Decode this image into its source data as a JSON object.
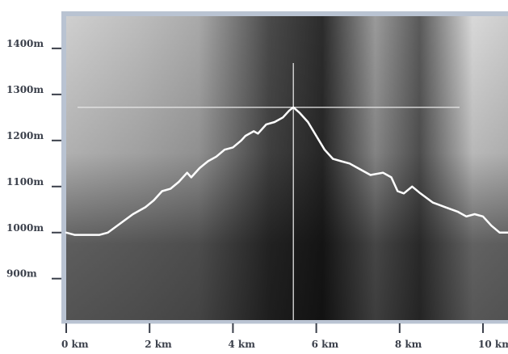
{
  "chart_data": {
    "type": "line",
    "title": "",
    "xlabel": "",
    "ylabel": "",
    "x_unit": "km",
    "y_unit": "m",
    "xlim": [
      0,
      10.6
    ],
    "ylim": [
      810,
      1470
    ],
    "x_ticks": [
      {
        "value": 0,
        "label": "0 km"
      },
      {
        "value": 2,
        "label": "2 km"
      },
      {
        "value": 4,
        "label": "4 km"
      },
      {
        "value": 6,
        "label": "6 km"
      },
      {
        "value": 8,
        "label": "8 km"
      },
      {
        "value": 10,
        "label": "10 km"
      }
    ],
    "y_ticks": [
      {
        "value": 1400,
        "label": "1400m"
      },
      {
        "value": 1300,
        "label": "1300m"
      },
      {
        "value": 1200,
        "label": "1200m"
      },
      {
        "value": 1100,
        "label": "1100m"
      },
      {
        "value": 1000,
        "label": "1000m"
      },
      {
        "value": 900,
        "label": "900m"
      }
    ],
    "series": [
      {
        "color": "#ffffff",
        "points": [
          [
            0.0,
            1000
          ],
          [
            0.2,
            995
          ],
          [
            0.5,
            995
          ],
          [
            0.8,
            995
          ],
          [
            1.0,
            1000
          ],
          [
            1.3,
            1020
          ],
          [
            1.6,
            1040
          ],
          [
            1.9,
            1055
          ],
          [
            2.1,
            1070
          ],
          [
            2.3,
            1090
          ],
          [
            2.5,
            1095
          ],
          [
            2.7,
            1110
          ],
          [
            2.9,
            1130
          ],
          [
            3.0,
            1120
          ],
          [
            3.2,
            1140
          ],
          [
            3.4,
            1155
          ],
          [
            3.6,
            1165
          ],
          [
            3.8,
            1180
          ],
          [
            4.0,
            1185
          ],
          [
            4.2,
            1200
          ],
          [
            4.3,
            1210
          ],
          [
            4.5,
            1220
          ],
          [
            4.6,
            1215
          ],
          [
            4.8,
            1235
          ],
          [
            5.0,
            1240
          ],
          [
            5.2,
            1250
          ],
          [
            5.35,
            1265
          ],
          [
            5.45,
            1272
          ],
          [
            5.6,
            1260
          ],
          [
            5.8,
            1240
          ],
          [
            6.0,
            1210
          ],
          [
            6.2,
            1180
          ],
          [
            6.4,
            1160
          ],
          [
            6.6,
            1155
          ],
          [
            6.8,
            1150
          ],
          [
            7.0,
            1140
          ],
          [
            7.3,
            1125
          ],
          [
            7.6,
            1130
          ],
          [
            7.8,
            1120
          ],
          [
            7.95,
            1090
          ],
          [
            8.1,
            1085
          ],
          [
            8.3,
            1100
          ],
          [
            8.5,
            1085
          ],
          [
            8.8,
            1065
          ],
          [
            9.1,
            1055
          ],
          [
            9.4,
            1045
          ],
          [
            9.6,
            1035
          ],
          [
            9.8,
            1040
          ],
          [
            10.0,
            1035
          ],
          [
            10.2,
            1015
          ],
          [
            10.4,
            1000
          ],
          [
            10.6,
            1000
          ]
        ]
      }
    ],
    "crosshair": {
      "x": 5.45,
      "y": 1272
    }
  }
}
